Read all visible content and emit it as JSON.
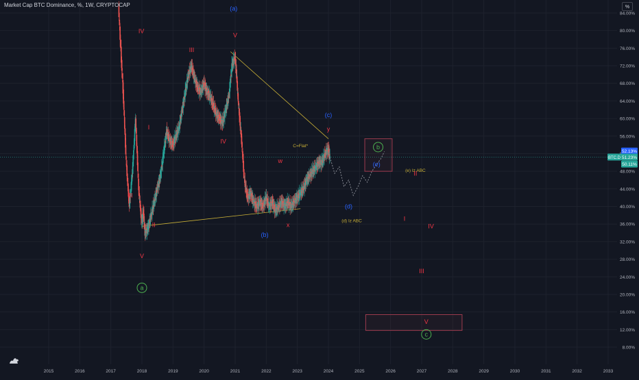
{
  "header": {
    "title": "Market Cap BTC Dominance, %, 1W, CRYPTOCAP",
    "scale_button": "%"
  },
  "colors": {
    "background": "#131722",
    "grid": "#1e222d",
    "axis_text": "#b2b5be",
    "up_candle": "#26a69a",
    "down_candle": "#ef5350",
    "wave_red": "#f23645",
    "wave_blue": "#2962ff",
    "wave_green": "#4caf50",
    "wave_yellow": "#c9b037",
    "trendline": "#c9b037",
    "projection": "#9598a1",
    "box": "#9c3b4e"
  },
  "chart_data": {
    "type": "line",
    "xlabel": "",
    "ylabel": "",
    "x_range": [
      2014.5,
      2033.2
    ],
    "y_range": [
      6,
      86
    ],
    "x_ticks": [
      "2015",
      "2016",
      "2017",
      "2018",
      "2019",
      "2020",
      "2021",
      "2022",
      "2023",
      "2024",
      "2025",
      "2026",
      "2027",
      "2028",
      "2029",
      "2030",
      "2031",
      "2032",
      "2033"
    ],
    "y_ticks": [
      "84.00%",
      "80.00%",
      "76.00%",
      "72.00%",
      "68.00%",
      "64.00%",
      "60.00%",
      "56.00%",
      "52.00%",
      "48.00%",
      "44.00%",
      "40.00%",
      "36.00%",
      "32.00%",
      "28.00%",
      "24.00%",
      "20.00%",
      "16.00%",
      "12.00%",
      "8.00%"
    ],
    "y_tick_values": [
      84,
      80,
      76,
      72,
      68,
      64,
      60,
      56,
      52,
      48,
      44,
      40,
      36,
      32,
      28,
      24,
      20,
      16,
      12,
      8
    ],
    "x_tick_values": [
      2015,
      2016,
      2017,
      2018,
      2019,
      2020,
      2021,
      2022,
      2023,
      2024,
      2025,
      2026,
      2027,
      2028,
      2029,
      2030,
      2031,
      2032,
      2033
    ],
    "series": [
      {
        "x": [
          2017.25,
          2017.4,
          2017.5,
          2017.6,
          2017.7,
          2017.8,
          2017.9,
          2018.0,
          2018.05,
          2018.1,
          2018.2,
          2018.3,
          2018.4,
          2018.5,
          2018.6,
          2018.7,
          2018.8,
          2018.9,
          2019.0,
          2019.1,
          2019.2,
          2019.3,
          2019.4,
          2019.5,
          2019.6,
          2019.7,
          2019.8,
          2019.9,
          2020.0,
          2020.1,
          2020.2,
          2020.3,
          2020.4,
          2020.5,
          2020.6,
          2020.7,
          2020.8,
          2020.9,
          2021.0,
          2021.05,
          2021.1,
          2021.2,
          2021.3,
          2021.4,
          2021.5,
          2021.6,
          2021.7,
          2021.8,
          2021.9,
          2022.0,
          2022.1,
          2022.2,
          2022.3,
          2022.4,
          2022.5,
          2022.6,
          2022.7,
          2022.8,
          2022.9,
          2023.0,
          2023.1,
          2023.2,
          2023.3,
          2023.4,
          2023.5,
          2023.6,
          2023.7,
          2023.8,
          2023.9,
          2024.0,
          2024.05
        ],
        "y": [
          85.5,
          66,
          50,
          40,
          48,
          60,
          44,
          36,
          39,
          34,
          35,
          38,
          41,
          44,
          47,
          52,
          57,
          55,
          54,
          56,
          58,
          62,
          66,
          70,
          72,
          69,
          67,
          66,
          68,
          66,
          65,
          63,
          61,
          60,
          59,
          62,
          65,
          72,
          74,
          70,
          64,
          56,
          46,
          42,
          43,
          41,
          40,
          41,
          40,
          42,
          40,
          41,
          39,
          40,
          41,
          40,
          41,
          40,
          41,
          42,
          43,
          44,
          46,
          47,
          48,
          49,
          50,
          50,
          52,
          53,
          51.2
        ]
      }
    ],
    "price_labels": [
      "52.13%",
      "51.23%",
      "50.11%"
    ],
    "price_label_values": [
      52.13,
      51.23,
      50.11
    ],
    "symbol": "BTC.D",
    "trendlines": [
      {
        "x": [
          2018.0,
          2023.1
        ],
        "y": [
          35.5,
          39.5
        ]
      },
      {
        "x": [
          2020.85,
          2024.0
        ],
        "y": [
          75.2,
          55.4
        ]
      }
    ],
    "projection": {
      "x": [
        2024.05,
        2024.2,
        2024.35,
        2024.5,
        2024.65,
        2024.8,
        2024.95,
        2025.1,
        2025.25,
        2025.4,
        2025.55,
        2025.7,
        2025.8
      ],
      "y": [
        51.2,
        47.5,
        49,
        44.5,
        46,
        42.5,
        44.5,
        47,
        45.5,
        48,
        49.5,
        51,
        52.5
      ]
    },
    "boxes": [
      {
        "x": [
          2025.17,
          2026.05
        ],
        "y": [
          48.0,
          55.4
        ]
      },
      {
        "x": [
          2025.2,
          2028.3
        ],
        "y": [
          11.8,
          15.4
        ]
      }
    ],
    "annotations": [
      {
        "text": "(a)",
        "x": 2020.95,
        "y": 85.0,
        "color": "blue"
      },
      {
        "text": "IV",
        "x": 2017.98,
        "y": 79.9,
        "color": "red"
      },
      {
        "text": "III",
        "x": 2019.6,
        "y": 75.6,
        "color": "red"
      },
      {
        "text": "V",
        "x": 2021.0,
        "y": 79.0,
        "color": "red"
      },
      {
        "text": "I",
        "x": 2018.22,
        "y": 58.0,
        "color": "red"
      },
      {
        "text": "IV",
        "x": 2020.62,
        "y": 54.8,
        "color": "red"
      },
      {
        "text": "III",
        "x": 2017.62,
        "y": 42.5,
        "color": "red"
      },
      {
        "text": "II",
        "x": 2018.38,
        "y": 35.8,
        "color": "red"
      },
      {
        "text": "V",
        "x": 2018.0,
        "y": 28.7,
        "color": "red"
      },
      {
        "text": "a",
        "x": 2018.0,
        "y": 21.5,
        "color": "green",
        "circle": true
      },
      {
        "text": "(b)",
        "x": 2021.95,
        "y": 33.6,
        "color": "blue"
      },
      {
        "text": "w",
        "x": 2022.45,
        "y": 50.4,
        "color": "red"
      },
      {
        "text": "x",
        "x": 2022.7,
        "y": 35.8,
        "color": "red"
      },
      {
        "text": "y",
        "x": 2024.0,
        "y": 57.6,
        "color": "red"
      },
      {
        "text": "(c)",
        "x": 2024.0,
        "y": 60.8,
        "color": "blue"
      },
      {
        "text": "C=Flat*",
        "x": 2023.1,
        "y": 53.8,
        "color": "yellow"
      },
      {
        "text": "(d)",
        "x": 2024.65,
        "y": 40.0,
        "color": "blue"
      },
      {
        "text": "(d) Iz ABC",
        "x": 2024.75,
        "y": 36.8,
        "color": "yellow"
      },
      {
        "text": "b",
        "x": 2025.6,
        "y": 53.5,
        "color": "green",
        "circle": true
      },
      {
        "text": "(e)",
        "x": 2025.55,
        "y": 49.6,
        "color": "blue"
      },
      {
        "text": "(e) Iz ABC",
        "x": 2026.8,
        "y": 48.2,
        "color": "yellow"
      },
      {
        "text": "II",
        "x": 2026.8,
        "y": 47.5,
        "color": "red"
      },
      {
        "text": "I",
        "x": 2026.45,
        "y": 37.2,
        "color": "red"
      },
      {
        "text": "IV",
        "x": 2027.3,
        "y": 35.5,
        "color": "red"
      },
      {
        "text": "III",
        "x": 2027.0,
        "y": 25.3,
        "color": "red"
      },
      {
        "text": "V",
        "x": 2027.15,
        "y": 13.8,
        "color": "red"
      },
      {
        "text": "c",
        "x": 2027.15,
        "y": 10.9,
        "color": "green",
        "circle": true
      }
    ]
  }
}
